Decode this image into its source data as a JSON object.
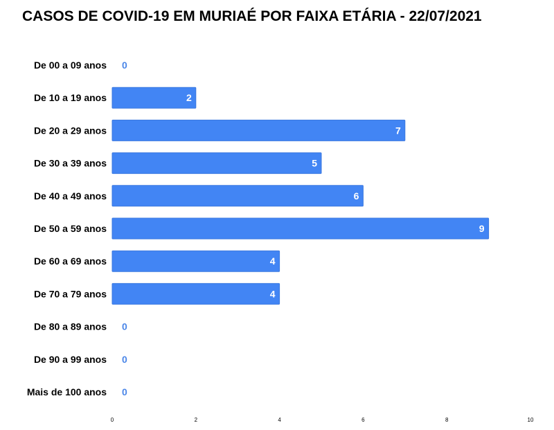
{
  "chart_data": {
    "type": "bar",
    "orientation": "horizontal",
    "title": "CASOS DE COVID-19 EM MURIAÉ POR FAIXA ETÁRIA - 22/07/2021",
    "categories": [
      "De 00 a 09 anos",
      "De 10 a 19 anos",
      "De 20 a 29 anos",
      "De 30 a 39 anos",
      "De 40 a 49 anos",
      "De 50 a 59 anos",
      "De 60 a 69 anos",
      "De 70 a 79 anos",
      "De 80 a 89 anos",
      "De 90 a 99 anos",
      "Mais de 100 anos"
    ],
    "values": [
      0,
      2,
      7,
      5,
      6,
      9,
      4,
      4,
      0,
      0,
      0
    ],
    "xlim": [
      0,
      10
    ],
    "xticks": [
      0,
      2,
      4,
      6,
      8,
      10
    ],
    "xlabel": "",
    "ylabel": "",
    "grid": false,
    "legend": "none",
    "data_labels": true,
    "colors": {
      "bar": "#4285f4",
      "bar_border": "#3a78df",
      "label_inside": "#ffffff",
      "label_outside": "#4a86e8"
    }
  }
}
